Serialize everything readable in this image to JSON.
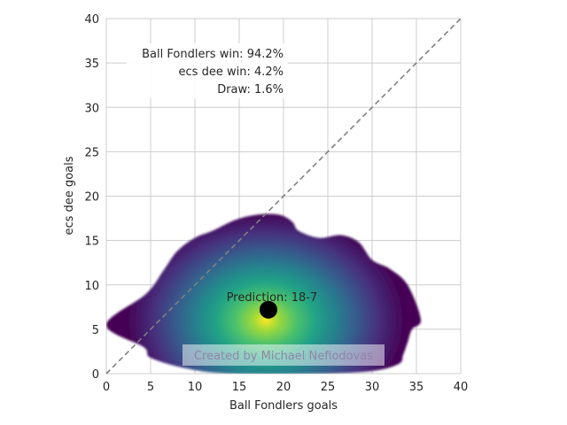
{
  "chart_data": {
    "type": "heatmap",
    "xlabel": "Ball Fondlers goals",
    "ylabel": "ecs dee goals",
    "xlim": [
      0,
      40
    ],
    "ylim": [
      0,
      40
    ],
    "xticks": [
      0,
      5,
      10,
      15,
      20,
      25,
      30,
      35,
      40
    ],
    "yticks": [
      0,
      5,
      10,
      15,
      20,
      25,
      30,
      35,
      40
    ],
    "grid": true,
    "diagonal_reference_line": "dashed gray y = x",
    "colormap": "viridis",
    "density_outline": [
      [
        0,
        5.5
      ],
      [
        4.5,
        9
      ],
      [
        6.5,
        11.7
      ],
      [
        8,
        13.8
      ],
      [
        10,
        15.3
      ],
      [
        12,
        16.1
      ],
      [
        14.5,
        17.3
      ],
      [
        17,
        17.9
      ],
      [
        19.5,
        17.9
      ],
      [
        21,
        17.1
      ],
      [
        21.7,
        16.1
      ],
      [
        24,
        15.3
      ],
      [
        26.5,
        15.6
      ],
      [
        28.5,
        14.8
      ],
      [
        30,
        12.8
      ],
      [
        32,
        11.8
      ],
      [
        34,
        10
      ],
      [
        35.5,
        6.1
      ],
      [
        34.5,
        5
      ],
      [
        34,
        3.5
      ],
      [
        33.5,
        2.1
      ],
      [
        33,
        1.1
      ],
      [
        30,
        0.3
      ],
      [
        24,
        0
      ],
      [
        14,
        0
      ],
      [
        9,
        0.6
      ],
      [
        5,
        1.8
      ],
      [
        4.2,
        3
      ]
    ],
    "density_peak": [
      18,
      6
    ],
    "prediction_point": [
      18.3,
      7.2
    ],
    "prediction_label": "Prediction: 18-7",
    "stats": {
      "home_win": "Ball Fondlers win: 94.2%",
      "away_win": "ecs dee win: 4.2%",
      "draw": "Draw: 1.6%"
    },
    "watermark": "Created by Michael Nefiodovas",
    "colors": {
      "grid": "#cccccc",
      "diagonal": "#808080",
      "point": "#000000",
      "text": "#262626",
      "viridis": [
        "#440154",
        "#46327e",
        "#365c8d",
        "#277f8e",
        "#1fa187",
        "#4ac16d",
        "#a0da39",
        "#fde725"
      ]
    }
  }
}
